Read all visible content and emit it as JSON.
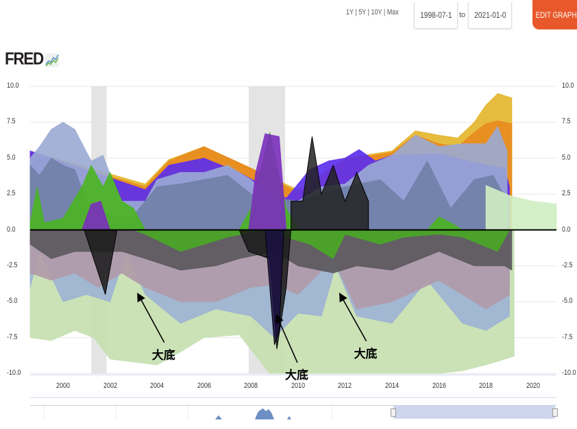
{
  "toolbar": {
    "range_links": [
      "1Y",
      "5Y",
      "10Y",
      "Max"
    ],
    "separator": " | ",
    "date_from": "1998-07-1",
    "to_label": "to",
    "date_to": "2021-01-0",
    "edit_graph_label": "EDIT GRAPH",
    "accent_color": "#e8582a"
  },
  "logo": {
    "text": "FRED",
    "icon": "chart-line-icon"
  },
  "chart_data": {
    "type": "area",
    "title": "",
    "xlabel": "",
    "ylabel": "",
    "xlim": [
      1998.6,
      2021.0
    ],
    "ylim": [
      -10.0,
      10.0
    ],
    "yticks_left": [
      "10.0",
      "7.5",
      "5.0",
      "2.5",
      "0.0",
      "-2.5",
      "-5.0",
      "-7.5",
      "-10.0"
    ],
    "yticks_right": [
      "10.0",
      "7.5",
      "5.0",
      "2.5",
      "0.0",
      "-2.5",
      "-5.0",
      "-7.5",
      "-10.0"
    ],
    "ytick_values": [
      10,
      7.5,
      5,
      2.5,
      0,
      -2.5,
      -5,
      -7.5,
      -10
    ],
    "xticks": [
      "2000",
      "2002",
      "2004",
      "2006",
      "2008",
      "2010",
      "2012",
      "2014",
      "2016",
      "2018",
      "2020"
    ],
    "xtick_values": [
      2000,
      2002,
      2004,
      2006,
      2008,
      2010,
      2012,
      2014,
      2016,
      2018,
      2020
    ],
    "grid": true,
    "legend": "none",
    "recessions": [
      {
        "start": 2001.2,
        "end": 2001.85
      },
      {
        "start": 2007.9,
        "end": 2009.45
      }
    ],
    "series": [
      {
        "name": "positive-yellow",
        "color": "#e3b52a",
        "x": [
          1998.6,
          2003.5,
          2004.5,
          2006.0,
          2008.0,
          2010.0,
          2012.0,
          2014.0,
          2015.0,
          2016.0,
          2016.8,
          2017.5,
          2018.0,
          2018.5,
          2019.1
        ],
        "values": [
          5.5,
          3.2,
          4.9,
          5.8,
          4.3,
          2.8,
          5.0,
          5.5,
          6.9,
          6.6,
          6.4,
          7.5,
          8.7,
          9.5,
          9.2
        ]
      },
      {
        "name": "positive-orange",
        "color": "#e8891f",
        "x": [
          1998.6,
          2003.5,
          2004.5,
          2006.0,
          2008.0,
          2010.0,
          2012.0,
          2014.0,
          2015.0,
          2016.0,
          2016.8,
          2017.5,
          2018.0,
          2018.5,
          2019.1
        ],
        "values": [
          5.4,
          3.0,
          4.8,
          5.8,
          4.3,
          2.6,
          4.9,
          5.4,
          6.6,
          6.0,
          5.8,
          6.8,
          7.4,
          7.6,
          7.4
        ]
      },
      {
        "name": "positive-violet",
        "color": "#5a2cf0",
        "x": [
          1998.6,
          2003.5,
          2004.5,
          2006.0,
          2007.5,
          2009.5,
          2010.5,
          2011.3,
          2012.0,
          2012.6,
          2013.3,
          2014.0,
          2016.0,
          2018.0,
          2018.8,
          2019.0
        ],
        "values": [
          5.5,
          2.8,
          4.5,
          5.0,
          4.0,
          2.2,
          4.2,
          4.8,
          5.0,
          5.6,
          4.8,
          5.2,
          5.3,
          4.5,
          4.3,
          3.0
        ]
      },
      {
        "name": "positive-light-blue",
        "color": "#9aaad4",
        "x": [
          1998.6,
          1999.0,
          1999.5,
          2000.0,
          2000.5,
          2001.2,
          2001.7,
          2002.2,
          2002.5,
          2003.0,
          2003.5,
          2004.0,
          2005.0,
          2006.0,
          2007.0,
          2008.0,
          2009.0,
          2010.0,
          2011.0,
          2012.0,
          2013.0,
          2014.0,
          2015.0,
          2016.0,
          2017.0,
          2018.0,
          2018.5,
          2018.9
        ],
        "values": [
          5.0,
          5.8,
          7.0,
          7.5,
          7.0,
          4.8,
          5.2,
          3.0,
          2.0,
          2.0,
          2.0,
          3.5,
          4.0,
          4.0,
          4.5,
          3.5,
          2.0,
          2.0,
          3.0,
          3.2,
          4.5,
          5.2,
          6.6,
          5.8,
          6.0,
          6.0,
          7.2,
          5.5
        ]
      },
      {
        "name": "positive-slate",
        "color": "#6f7fa6",
        "x": [
          1998.6,
          1999.0,
          1999.5,
          2000.0,
          2000.5,
          2001.0,
          2002.0,
          2003.0,
          2004.0,
          2005.0,
          2006.0,
          2007.0,
          2008.0,
          2010.0,
          2012.0,
          2013.5,
          2014.5,
          2015.5,
          2016.5,
          2017.5,
          2018.3,
          2018.9
        ],
        "values": [
          4.5,
          3.8,
          5.0,
          4.5,
          4.2,
          2.0,
          1.0,
          1.0,
          3.0,
          3.2,
          3.5,
          3.8,
          2.5,
          2.0,
          3.0,
          3.5,
          2.0,
          4.8,
          1.5,
          3.5,
          3.8,
          2.0
        ]
      },
      {
        "name": "positive-green",
        "color": "#4ab520",
        "x": [
          1998.6,
          1998.9,
          1999.2,
          2000.0,
          2000.8,
          2001.2,
          2001.7,
          2002.0,
          2002.5,
          2003.0,
          2003.5,
          2007.5,
          2008.0,
          2008.8,
          2009.5,
          2010.0,
          2015.5,
          2016.0,
          2016.5,
          2017.0
        ],
        "values": [
          0.5,
          3.0,
          0.5,
          0.8,
          3.0,
          4.5,
          3.0,
          4.0,
          2.0,
          1.5,
          0.0,
          0.0,
          1.5,
          6.8,
          1.5,
          0.0,
          0.0,
          0.9,
          0.5,
          0.0
        ]
      },
      {
        "name": "positive-purple",
        "color": "#7b2fbd",
        "x": [
          1998.6,
          2000.8,
          2001.2,
          2001.6,
          2002.0,
          2007.9,
          2008.2,
          2008.6,
          2009.2,
          2009.5,
          2009.7
        ],
        "values": [
          0.0,
          0.0,
          1.8,
          2.0,
          0.0,
          0.0,
          4.0,
          6.7,
          6.5,
          0.0,
          0.0
        ]
      },
      {
        "name": "positive-dark-peaks",
        "color": "#222222",
        "x": [
          2009.7,
          2010.2,
          2010.6,
          2011.0,
          2011.5,
          2012.0,
          2012.5,
          2013.0
        ],
        "values": [
          2.0,
          2.0,
          6.5,
          2.5,
          4.5,
          2.0,
          4.0,
          2.0
        ]
      },
      {
        "name": "positive-light-green",
        "color": "#cfeec2",
        "x": [
          2018.0,
          2019.0,
          2020.0,
          2021.0
        ],
        "values": [
          3.1,
          2.4,
          2.0,
          1.8
        ]
      },
      {
        "name": "negative-light-green",
        "color": "#c5dfaf",
        "x": [
          1998.6,
          1999.5,
          2000.5,
          2001.3,
          2002.0,
          2003.0,
          2004.0,
          2005.0,
          2006.0,
          2007.5,
          2008.8,
          2010.0,
          2012.0,
          2014.0,
          2016.0,
          2017.0,
          2018.0,
          2019.2
        ],
        "values": [
          -7.5,
          -7.7,
          -7.0,
          -7.5,
          -9.0,
          -9.2,
          -9.4,
          -8.5,
          -7.5,
          -7.3,
          -10.0,
          -10.0,
          -10.0,
          -10.0,
          -10.0,
          -9.8,
          -9.4,
          -8.8
        ]
      },
      {
        "name": "negative-blue",
        "color": "#9db3d4",
        "x": [
          1998.6,
          1999.0,
          2000.0,
          2001.0,
          2002.0,
          2002.7,
          2003.5,
          2005.0,
          2006.5,
          2008.0,
          2009.0,
          2010.0,
          2011.0,
          2011.6,
          2012.5,
          2014.0,
          2015.5,
          2017.0,
          2018.0,
          2019.0
        ],
        "values": [
          -4.0,
          -1.5,
          -5.0,
          -4.5,
          -5.0,
          -1.5,
          -4.5,
          -6.5,
          -5.5,
          -6.0,
          -7.5,
          -5.8,
          -6.0,
          -2.5,
          -6.0,
          -6.5,
          -3.5,
          -6.5,
          -7.0,
          -6.0
        ]
      },
      {
        "name": "negative-mauve",
        "color": "#b09aa8",
        "x": [
          1998.6,
          1999.5,
          2000.5,
          2001.5,
          2002.5,
          2003.5,
          2005.0,
          2006.5,
          2008.0,
          2009.0,
          2010.0,
          2011.5,
          2012.5,
          2014.0,
          2016.0,
          2018.0,
          2019.0
        ],
        "values": [
          -3.0,
          -3.5,
          -3.0,
          -4.0,
          -3.0,
          -4.0,
          -5.0,
          -5.0,
          -4.0,
          -3.8,
          -4.5,
          -2.0,
          -5.5,
          -5.0,
          -3.5,
          -5.5,
          -4.5
        ]
      },
      {
        "name": "negative-dark-gray",
        "color": "#5a585c",
        "x": [
          1998.6,
          1999.5,
          2000.5,
          2001.5,
          2002.5,
          2003.5,
          2005.0,
          2006.5,
          2007.5,
          2009.0,
          2010.0,
          2011.5,
          2012.5,
          2014.0,
          2016.0,
          2017.5,
          2018.8,
          2019.1
        ],
        "values": [
          -1.0,
          -2.0,
          -1.5,
          -1.5,
          -1.5,
          -2.0,
          -2.8,
          -2.5,
          -2.0,
          -1.5,
          -2.5,
          -3.0,
          -2.5,
          -2.8,
          -1.5,
          -2.5,
          -2.5,
          -2.8
        ]
      },
      {
        "name": "negative-green",
        "color": "#4aa825",
        "x": [
          2003.0,
          2003.5,
          2005.0,
          2006.0,
          2007.0,
          2008.5,
          2009.5,
          2010.5,
          2011.5,
          2012.0,
          2013.5,
          2014.5,
          2016.0,
          2017.0,
          2018.5,
          2019.0
        ],
        "values": [
          0.0,
          -0.3,
          -1.5,
          -1.0,
          -0.5,
          0.0,
          -0.5,
          -1.0,
          -2.0,
          -0.3,
          -1.0,
          -0.5,
          -0.3,
          -0.5,
          -1.5,
          0.0
        ]
      },
      {
        "name": "negative-black",
        "color": "#1a1a1a",
        "x": [
          2000.9,
          2001.3,
          2001.8,
          2002.3,
          2007.5,
          2007.9,
          2008.8,
          2009.1,
          2009.5,
          2009.7
        ],
        "values": [
          0.0,
          -2.0,
          -4.5,
          0.0,
          0.0,
          -1.5,
          -2.0,
          -8.3,
          -4.0,
          0.0
        ]
      },
      {
        "name": "negative-navy",
        "color": "#1a1040",
        "x": [
          2008.6,
          2008.9,
          2009.0,
          2009.2,
          2009.4
        ],
        "values": [
          0.0,
          -6.0,
          -8.0,
          -7.0,
          0.0
        ]
      }
    ],
    "annotations": [
      {
        "text": "大底",
        "x": 2003.2,
        "y": -4.5
      },
      {
        "text": "大底",
        "x": 2009.1,
        "y": -6.0
      },
      {
        "text": "大底",
        "x": 2011.8,
        "y": -4.5
      }
    ]
  },
  "navigator": {
    "handles": [
      "left-handle",
      "right-handle"
    ]
  }
}
